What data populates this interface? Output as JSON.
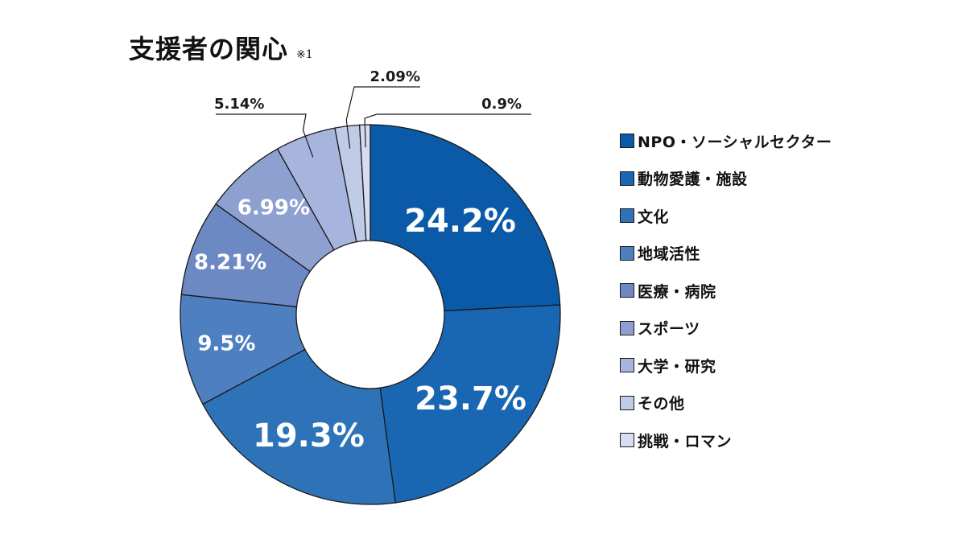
{
  "title": "支援者の関心",
  "note": "※1",
  "chart_data": {
    "type": "pie",
    "donut": true,
    "categories": [
      "NPO・ソーシャルセクター",
      "動物愛護・施設",
      "文化",
      "地域活性",
      "医療・病院",
      "スポーツ",
      "大学・研究",
      "その他",
      "挑戦・ロマン"
    ],
    "values": [
      24.2,
      23.7,
      19.3,
      9.5,
      8.21,
      6.99,
      5.14,
      2.09,
      0.9
    ],
    "value_labels": [
      "24.2%",
      "23.7%",
      "19.3%",
      "9.5%",
      "8.21%",
      "6.99%",
      "5.14%",
      "2.09%",
      "0.9%"
    ],
    "colors": [
      "#0a5aa8",
      "#1966b3",
      "#2e73b8",
      "#4e7fc0",
      "#6c89c4",
      "#8da0d0",
      "#a7b5de",
      "#c0cbe8",
      "#d6ddf1"
    ],
    "legend_position": "right"
  }
}
